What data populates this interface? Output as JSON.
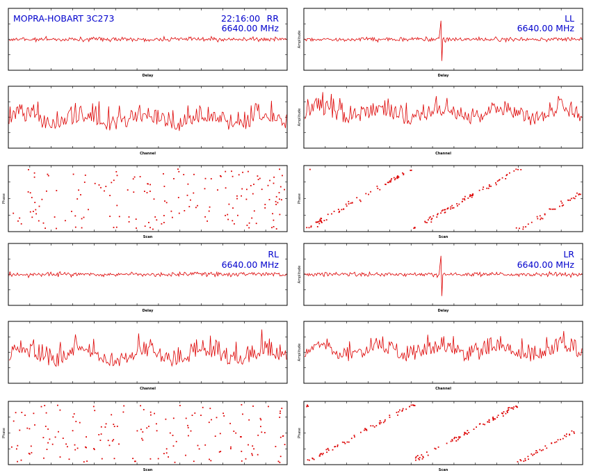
{
  "figure": {
    "title": "MOPRA-HOBART 3C273",
    "time": "22:16:00"
  },
  "axis_labels": {
    "delay": "Delay",
    "channel": "Channel",
    "amplitude": "Amplitude",
    "phase": "Phase",
    "scan": "Scan"
  },
  "colors": {
    "trace": "#dd0000",
    "annotation": "#0000cc",
    "frame": "#000000",
    "background": "#ffffff"
  },
  "chart_data": [
    {
      "polarization": "RR",
      "frequency": "6640.00 MHz",
      "panels": [
        {
          "type": "line",
          "xlabel": "Delay",
          "ylabel": "",
          "signal": "noise",
          "spike_at": null,
          "level": 0.5
        },
        {
          "type": "line",
          "xlabel": "Channel",
          "ylabel": "",
          "signal": "spectrum",
          "level": 0.35
        },
        {
          "type": "scatter",
          "xlabel": "Scan",
          "ylabel": "Phase",
          "signal": "random_phase",
          "points": 170
        }
      ]
    },
    {
      "polarization": "LL",
      "frequency": "6640.00 MHz",
      "panels": [
        {
          "type": "line",
          "xlabel": "Delay",
          "ylabel": "Amplitude",
          "signal": "fringe",
          "spike_at": 0.49,
          "level": 0.5
        },
        {
          "type": "line",
          "xlabel": "Channel",
          "ylabel": "Amplitude",
          "signal": "spectrum",
          "level": 0.45
        },
        {
          "type": "scatter",
          "xlabel": "Scan",
          "ylabel": "Phase",
          "signal": "wrapping_phase",
          "points": 180,
          "wraps": 2.6
        }
      ]
    },
    {
      "polarization": "RL",
      "frequency": "6640.00 MHz",
      "panels": [
        {
          "type": "line",
          "xlabel": "Delay",
          "ylabel": "",
          "signal": "noise",
          "spike_at": null,
          "level": 0.5
        },
        {
          "type": "line",
          "xlabel": "Channel",
          "ylabel": "",
          "signal": "spectrum",
          "level": 0.35
        },
        {
          "type": "scatter",
          "xlabel": "Scan",
          "ylabel": "Phase",
          "signal": "random_phase",
          "points": 170
        }
      ]
    },
    {
      "polarization": "LR",
      "frequency": "6640.00 MHz",
      "panels": [
        {
          "type": "line",
          "xlabel": "Delay",
          "ylabel": "Amplitude",
          "signal": "fringe",
          "spike_at": 0.49,
          "level": 0.5
        },
        {
          "type": "line",
          "xlabel": "Channel",
          "ylabel": "Amplitude",
          "signal": "spectrum",
          "level": 0.42
        },
        {
          "type": "scatter",
          "xlabel": "Scan",
          "ylabel": "Phase",
          "signal": "wrapping_phase",
          "points": 180,
          "wraps": 2.6
        }
      ]
    }
  ]
}
